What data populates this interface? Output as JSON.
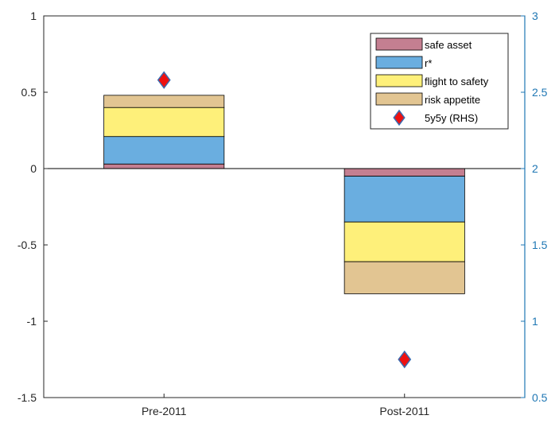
{
  "chart_data": {
    "type": "bar",
    "stacked": true,
    "categories": [
      "Pre-2011",
      "Post-2011"
    ],
    "series": [
      {
        "name": "safe asset",
        "values": [
          0.03,
          -0.05
        ],
        "color": "#C47F91"
      },
      {
        "name": "r*",
        "values": [
          0.18,
          -0.3
        ],
        "color": "#6AAEE0"
      },
      {
        "name": "flight to safety",
        "values": [
          0.19,
          -0.26
        ],
        "color": "#FEF07A"
      },
      {
        "name": "risk appetite",
        "values": [
          0.08,
          -0.21
        ],
        "color": "#E2C592"
      }
    ],
    "markers": {
      "name": "5y5y (RHS)",
      "values": [
        2.58,
        0.75
      ],
      "color": "#EE1111",
      "edge_color": "#3A6AB0",
      "shape": "diamond",
      "axis": "right"
    },
    "left_axis": {
      "ylim": [
        -1.5,
        1
      ],
      "ticks": [
        1,
        0.5,
        0,
        -0.5,
        -1,
        -1.5
      ],
      "tick_labels": [
        "1",
        "0.5",
        "0",
        "-0.5",
        "-1",
        "-1.5"
      ]
    },
    "right_axis": {
      "ylim": [
        0.5,
        3
      ],
      "ticks": [
        3,
        2.5,
        2,
        1.5,
        1,
        0.5
      ],
      "tick_labels": [
        "3",
        "2.5",
        "2",
        "1.5",
        "1",
        "0.5"
      ],
      "color": "#1F77B4"
    },
    "zero_line": true,
    "grid": false,
    "legend": {
      "placement": "top-right",
      "entries": [
        "safe asset",
        "r*",
        "flight to safety",
        "risk appetite",
        "5y5y (RHS)"
      ]
    },
    "title": "",
    "xlabel": "",
    "ylabel": ""
  }
}
